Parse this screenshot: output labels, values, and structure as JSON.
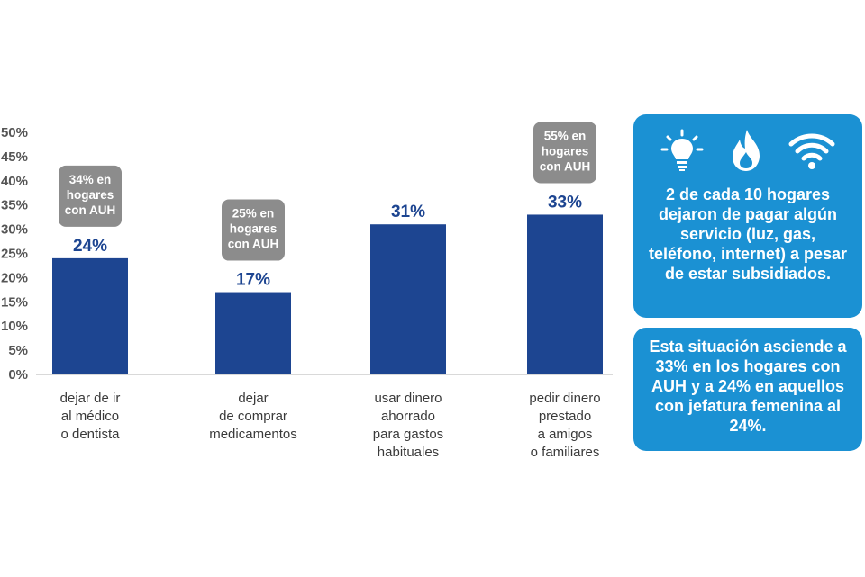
{
  "chart_data": {
    "type": "bar",
    "categories": [
      [
        "dejar de ir",
        "al médico",
        "o dentista"
      ],
      [
        "dejar",
        "de comprar",
        "medicamentos"
      ],
      [
        "usar dinero",
        "ahorrado",
        "para gastos",
        "habituales"
      ],
      [
        "pedir dinero",
        "prestado",
        "a amigos",
        "o familiares"
      ]
    ],
    "values": [
      24,
      17,
      31,
      33
    ],
    "value_labels": [
      "24%",
      "17%",
      "31%",
      "33%"
    ],
    "ylim": [
      0,
      50
    ],
    "yticks": [
      "50%",
      "45%",
      "40%",
      "35%",
      "30%",
      "25%",
      "20%",
      "15%",
      "10%",
      "5%",
      "0%"
    ],
    "ytick_values": [
      50,
      45,
      40,
      35,
      30,
      25,
      20,
      15,
      10,
      5,
      0
    ],
    "callouts": [
      {
        "category_index": 0,
        "lines": [
          "34% en",
          "hogares",
          "con AUH"
        ]
      },
      {
        "category_index": 1,
        "lines": [
          "25% en",
          "hogares",
          "con AUH"
        ]
      },
      {
        "category_index": 3,
        "lines": [
          "55% en",
          "hogares",
          "con AUH"
        ]
      }
    ],
    "bar_color": "#1d4591",
    "callout_color": "#8c8c8c",
    "grid": false,
    "title": "",
    "xlabel": "",
    "ylabel": ""
  },
  "panels": {
    "color": "#1b91d3",
    "icons": [
      "lightbulb-icon",
      "flame-icon",
      "wifi-icon"
    ],
    "main_text": "2 de cada 10 hogares dejaron de pagar algún servicio (luz, gas, teléfono, internet) a pesar de estar subsidiados.",
    "secondary_text": "Esta situación asciende a 33% en los hogares con AUH y a 24% en aquellos con jefatura femenina al 24%."
  }
}
